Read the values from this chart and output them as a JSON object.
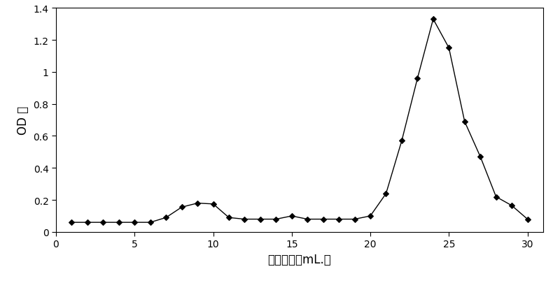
{
  "x": [
    1,
    2,
    3,
    4,
    5,
    6,
    7,
    8,
    9,
    10,
    11,
    12,
    13,
    14,
    15,
    16,
    17,
    18,
    19,
    20,
    21,
    22,
    23,
    24,
    25,
    26,
    27,
    28,
    29,
    30
  ],
  "y": [
    0.06,
    0.06,
    0.06,
    0.06,
    0.06,
    0.06,
    0.09,
    0.155,
    0.18,
    0.175,
    0.09,
    0.08,
    0.08,
    0.08,
    0.1,
    0.08,
    0.08,
    0.08,
    0.08,
    0.1,
    0.24,
    0.57,
    0.96,
    1.33,
    1.15,
    0.69,
    0.47,
    0.22,
    0.165,
    0.08
  ],
  "xlabel": "洗脱体积（mL.）",
  "ylabel": "OD 値",
  "xlim": [
    0,
    31
  ],
  "ylim": [
    0,
    1.4
  ],
  "xticks": [
    0,
    5,
    10,
    15,
    20,
    25,
    30
  ],
  "yticks": [
    0,
    0.2,
    0.4,
    0.6,
    0.8,
    1.0,
    1.2,
    1.4
  ],
  "ytick_labels": [
    "0",
    "0.2",
    "0.4",
    "0.6",
    "0.8",
    "1",
    "1.2",
    "1.4"
  ],
  "line_color": "#000000",
  "marker": "D",
  "marker_size": 4,
  "marker_facecolor": "#000000",
  "linewidth": 1.0,
  "background_color": "#ffffff",
  "figsize": [
    8.0,
    4.06
  ],
  "dpi": 100
}
